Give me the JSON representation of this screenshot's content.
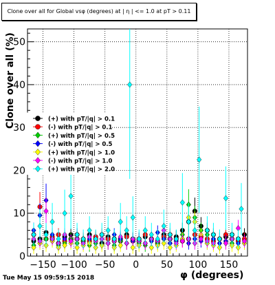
{
  "chart_data": {
    "type": "scatter",
    "title": "Clone  over all for Global vsφ (degrees) at | η | <= 1.0 at pT > 0.11",
    "xlabel": "φ (degrees)",
    "ylabel": "Clone  over all (%)",
    "timestamp": "Tue May 15 09:59:15 2018",
    "xlim": [
      -175,
      180
    ],
    "ylim": [
      0,
      53
    ],
    "xticks": [
      -150,
      -100,
      -50,
      0,
      50,
      100,
      150
    ],
    "xtick_labels": [
      "−150",
      "−100",
      "−50",
      "0",
      "50",
      "100",
      "150"
    ],
    "yticks": [
      0,
      10,
      20,
      30,
      40,
      50
    ],
    "ytick_labels": [
      "0",
      "10",
      "20",
      "30",
      "40",
      "50"
    ],
    "grid": true,
    "legend_position": "left-middle",
    "series": [
      {
        "name": "(+) with pT/|q| > 0.1",
        "color": "#000000",
        "marker": "circle",
        "points": [
          [
            -165,
            3.5
          ],
          [
            -155,
            4
          ],
          [
            -145,
            5.5
          ],
          [
            -135,
            4
          ],
          [
            -125,
            3
          ],
          [
            -115,
            4.5
          ],
          [
            -105,
            5
          ],
          [
            -95,
            4
          ],
          [
            -85,
            3.5
          ],
          [
            -75,
            5
          ],
          [
            -65,
            4
          ],
          [
            -55,
            3
          ],
          [
            -45,
            4.5
          ],
          [
            -35,
            4
          ],
          [
            -25,
            3.5
          ],
          [
            -15,
            5
          ],
          [
            -5,
            4
          ],
          [
            5,
            3.5
          ],
          [
            15,
            4.5
          ],
          [
            25,
            4
          ],
          [
            35,
            3
          ],
          [
            45,
            5
          ],
          [
            55,
            4
          ],
          [
            65,
            4.5
          ],
          [
            75,
            6
          ],
          [
            85,
            8
          ],
          [
            95,
            10.5
          ],
          [
            105,
            7
          ],
          [
            115,
            6
          ],
          [
            125,
            5
          ],
          [
            135,
            4
          ],
          [
            145,
            4.5
          ],
          [
            155,
            5
          ],
          [
            165,
            4
          ],
          [
            175,
            5
          ]
        ]
      },
      {
        "name": "(-) with pT/|q| > 0.1",
        "color": "#ff0000",
        "marker": "circle",
        "points": [
          [
            -165,
            5
          ],
          [
            -155,
            11.5
          ],
          [
            -145,
            4
          ],
          [
            -135,
            4.5
          ],
          [
            -125,
            5
          ],
          [
            -115,
            3.5
          ],
          [
            -105,
            4
          ],
          [
            -95,
            5
          ],
          [
            -85,
            4
          ],
          [
            -75,
            3.5
          ],
          [
            -65,
            4.5
          ],
          [
            -55,
            5
          ],
          [
            -45,
            4
          ],
          [
            -35,
            3.5
          ],
          [
            -25,
            4
          ],
          [
            -15,
            4.5
          ],
          [
            -5,
            3.5
          ],
          [
            5,
            4
          ],
          [
            15,
            5
          ],
          [
            25,
            4
          ],
          [
            35,
            3.5
          ],
          [
            45,
            4.5
          ],
          [
            55,
            5
          ],
          [
            65,
            4
          ],
          [
            75,
            3.5
          ],
          [
            85,
            4
          ],
          [
            95,
            5
          ],
          [
            105,
            4.5
          ],
          [
            115,
            4
          ],
          [
            125,
            3.5
          ],
          [
            135,
            4
          ],
          [
            145,
            5
          ],
          [
            155,
            4
          ],
          [
            165,
            3.5
          ],
          [
            175,
            4
          ]
        ]
      },
      {
        "name": "(+) with pT/|q| > 0.5",
        "color": "#00cc00",
        "marker": "diamond",
        "points": [
          [
            -165,
            2.5
          ],
          [
            -155,
            3
          ],
          [
            -145,
            4
          ],
          [
            -135,
            3.5
          ],
          [
            -125,
            2.5
          ],
          [
            -115,
            3
          ],
          [
            -105,
            4
          ],
          [
            -95,
            3
          ],
          [
            -85,
            3.5
          ],
          [
            -75,
            2.5
          ],
          [
            -65,
            3
          ],
          [
            -55,
            4
          ],
          [
            -45,
            3
          ],
          [
            -35,
            2.5
          ],
          [
            -25,
            3.5
          ],
          [
            -15,
            3
          ],
          [
            -5,
            4
          ],
          [
            5,
            3
          ],
          [
            15,
            2.5
          ],
          [
            25,
            3.5
          ],
          [
            35,
            3
          ],
          [
            45,
            4
          ],
          [
            55,
            3
          ],
          [
            65,
            3.5
          ],
          [
            75,
            5
          ],
          [
            85,
            12
          ],
          [
            95,
            9
          ],
          [
            105,
            6
          ],
          [
            115,
            5
          ],
          [
            125,
            4
          ],
          [
            135,
            3
          ],
          [
            145,
            3.5
          ],
          [
            155,
            3
          ],
          [
            165,
            4
          ],
          [
            175,
            3
          ]
        ]
      },
      {
        "name": "(-) with pT/|q| > 0.5",
        "color": "#0000ff",
        "marker": "diamond",
        "points": [
          [
            -165,
            6
          ],
          [
            -155,
            9.5
          ],
          [
            -145,
            13
          ],
          [
            -135,
            5
          ],
          [
            -125,
            3
          ],
          [
            -115,
            4
          ],
          [
            -105,
            3.5
          ],
          [
            -95,
            5
          ],
          [
            -85,
            3
          ],
          [
            -75,
            4
          ],
          [
            -65,
            3.5
          ],
          [
            -55,
            4
          ],
          [
            -45,
            3
          ],
          [
            -35,
            5
          ],
          [
            -25,
            4
          ],
          [
            -15,
            3
          ],
          [
            -5,
            3.5
          ],
          [
            5,
            4
          ],
          [
            15,
            3
          ],
          [
            25,
            3.5
          ],
          [
            35,
            5.5
          ],
          [
            45,
            4
          ],
          [
            55,
            3
          ],
          [
            65,
            3.5
          ],
          [
            75,
            4
          ],
          [
            85,
            3
          ],
          [
            95,
            4
          ],
          [
            105,
            3.5
          ],
          [
            115,
            3
          ],
          [
            125,
            4
          ],
          [
            135,
            3
          ],
          [
            145,
            3.5
          ],
          [
            155,
            4
          ],
          [
            165,
            3
          ],
          [
            175,
            3.5
          ]
        ]
      },
      {
        "name": "(+) with pT/|q| > 1.0",
        "color": "#ffff00",
        "marker": "diamond",
        "points": [
          [
            -165,
            2
          ],
          [
            -155,
            3
          ],
          [
            -145,
            2.5
          ],
          [
            -135,
            3.5
          ],
          [
            -125,
            2
          ],
          [
            -115,
            2.5
          ],
          [
            -105,
            3
          ],
          [
            -95,
            2
          ],
          [
            -85,
            2.5
          ],
          [
            -75,
            3
          ],
          [
            -65,
            2
          ],
          [
            -55,
            2.5
          ],
          [
            -45,
            3
          ],
          [
            -35,
            2
          ],
          [
            -25,
            2.5
          ],
          [
            -15,
            3
          ],
          [
            -5,
            2
          ],
          [
            5,
            2.5
          ],
          [
            15,
            3
          ],
          [
            25,
            2
          ],
          [
            35,
            2.5
          ],
          [
            45,
            3
          ],
          [
            55,
            2
          ],
          [
            65,
            2.5
          ],
          [
            75,
            4
          ],
          [
            85,
            9
          ],
          [
            95,
            8
          ],
          [
            105,
            5
          ],
          [
            115,
            3
          ],
          [
            125,
            2.5
          ],
          [
            135,
            2
          ],
          [
            145,
            3
          ],
          [
            155,
            2.5
          ],
          [
            165,
            2
          ],
          [
            175,
            3
          ]
        ]
      },
      {
        "name": "(-) with pT/|q| > 1.0",
        "color": "#ff00ff",
        "marker": "diamond",
        "points": [
          [
            -165,
            4
          ],
          [
            -155,
            3.5
          ],
          [
            -145,
            10.5
          ],
          [
            -135,
            4
          ],
          [
            -125,
            3
          ],
          [
            -115,
            5
          ],
          [
            -105,
            3.5
          ],
          [
            -95,
            4
          ],
          [
            -85,
            3
          ],
          [
            -75,
            4.5
          ],
          [
            -65,
            3.5
          ],
          [
            -55,
            4
          ],
          [
            -45,
            3
          ],
          [
            -35,
            3.5
          ],
          [
            -25,
            4.5
          ],
          [
            -15,
            3
          ],
          [
            -5,
            4
          ],
          [
            5,
            3.5
          ],
          [
            15,
            3
          ],
          [
            25,
            4
          ],
          [
            35,
            3.5
          ],
          [
            45,
            6
          ],
          [
            55,
            4
          ],
          [
            65,
            3
          ],
          [
            75,
            3.5
          ],
          [
            85,
            4
          ],
          [
            95,
            3
          ],
          [
            105,
            4
          ],
          [
            115,
            3.5
          ],
          [
            125,
            3
          ],
          [
            135,
            4
          ],
          [
            145,
            3
          ],
          [
            155,
            4
          ],
          [
            165,
            6.5
          ],
          [
            175,
            3.5
          ]
        ]
      },
      {
        "name": "(+) with pT/|q| > 2.0",
        "color": "#00ffff",
        "marker": "diamond",
        "points": [
          [
            -165,
            5
          ],
          [
            -155,
            7
          ],
          [
            -145,
            5
          ],
          [
            -135,
            8
          ],
          [
            -125,
            4
          ],
          [
            -115,
            10
          ],
          [
            -105,
            14
          ],
          [
            -95,
            5
          ],
          [
            -85,
            4
          ],
          [
            -75,
            6
          ],
          [
            -65,
            4
          ],
          [
            -55,
            5
          ],
          [
            -45,
            6
          ],
          [
            -35,
            4
          ],
          [
            -25,
            8
          ],
          [
            -15,
            6
          ],
          [
            -5,
            9
          ],
          [
            -10,
            40
          ],
          [
            5,
            4
          ],
          [
            15,
            6
          ],
          [
            25,
            5
          ],
          [
            35,
            4
          ],
          [
            45,
            7
          ],
          [
            55,
            5
          ],
          [
            65,
            4
          ],
          [
            75,
            12.5
          ],
          [
            85,
            8
          ],
          [
            95,
            6
          ],
          [
            102,
            22.5
          ],
          [
            115,
            6
          ],
          [
            125,
            5
          ],
          [
            135,
            4
          ],
          [
            145,
            13.5
          ],
          [
            155,
            5
          ],
          [
            165,
            4
          ],
          [
            170,
            11
          ]
        ]
      }
    ]
  }
}
